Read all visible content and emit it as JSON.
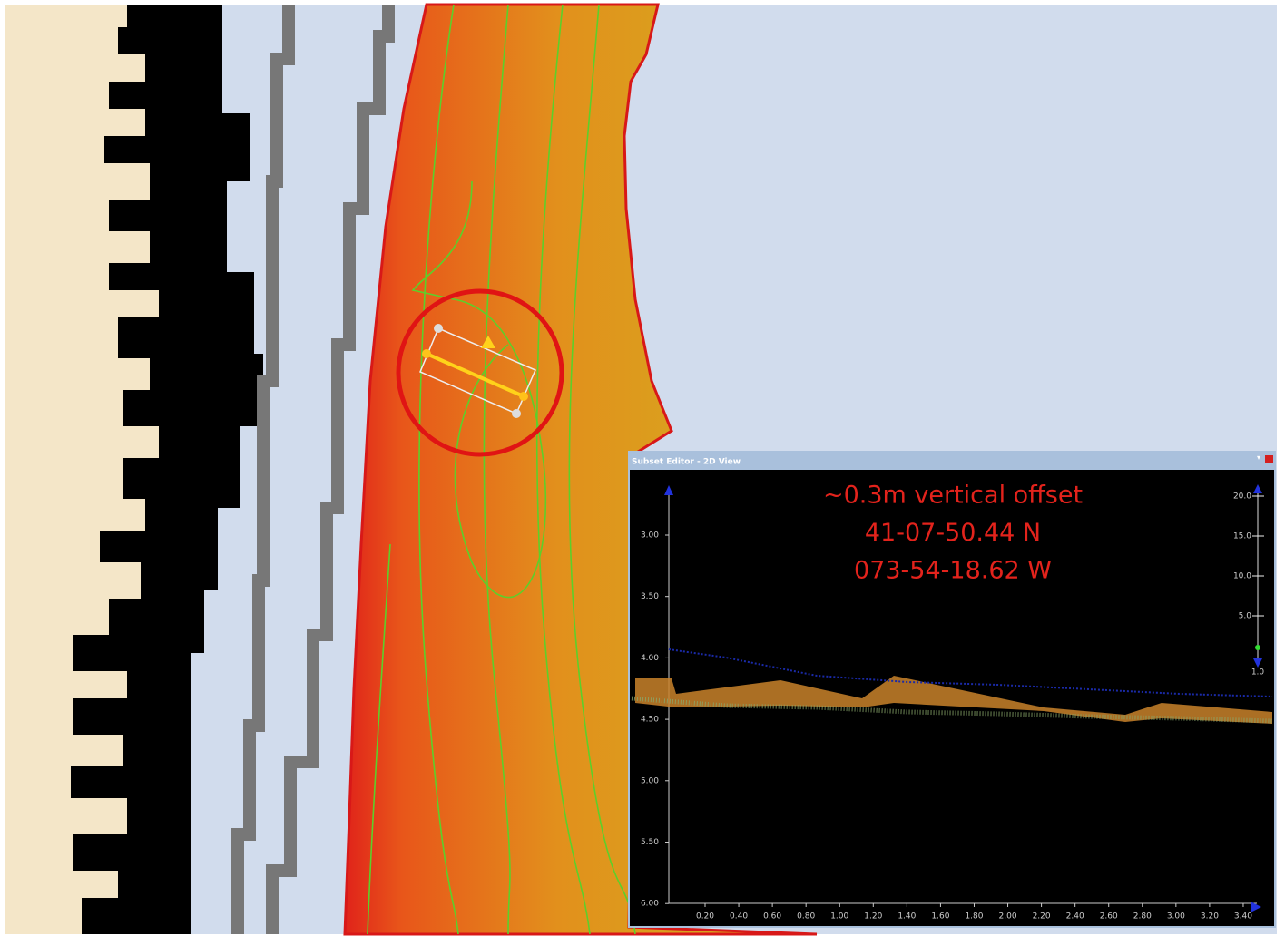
{
  "panel": {
    "title": "Subset Editor - 2D View",
    "annotations": [
      "~0.3m vertical offset",
      "41-07-50.44 N",
      "073-54-18.62 W"
    ],
    "y_axis_labels": [
      "3.00",
      "3.50",
      "4.00",
      "4.50",
      "5.00",
      "5.50",
      "6.00"
    ],
    "x_axis_labels": [
      "0.20",
      "0.40",
      "0.60",
      "0.80",
      "1.00",
      "1.20",
      "1.40",
      "1.60",
      "1.80",
      "2.00",
      "2.20",
      "2.40",
      "2.60",
      "2.80",
      "3.00",
      "3.20",
      "3.40"
    ],
    "scale_labels": [
      "20.0",
      "15.0",
      "10.0",
      "5.0",
      "1.0"
    ]
  }
}
